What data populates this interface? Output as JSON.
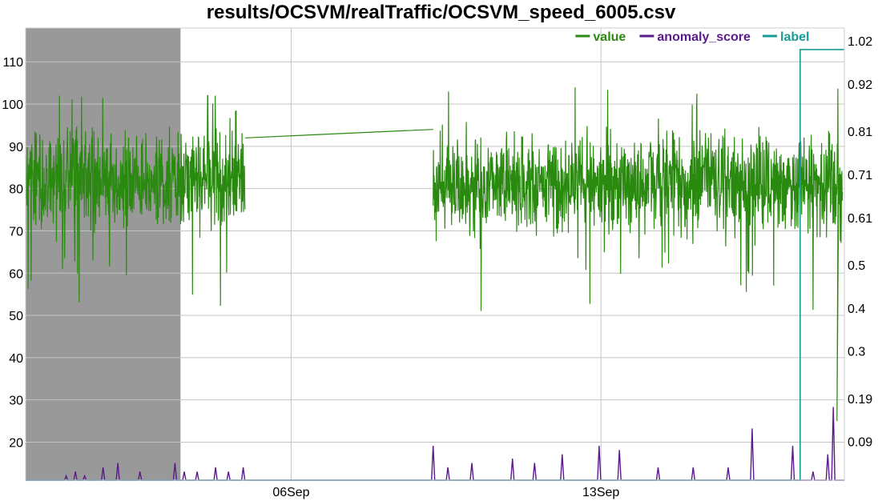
{
  "chart_data": {
    "type": "line",
    "title": "results/OCSVM/realTraffic/OCSVM_speed_6005.csv",
    "xlabel": "",
    "ylabel": "",
    "y_left": {
      "range": [
        11,
        118
      ],
      "ticks": [
        20,
        30,
        40,
        50,
        60,
        70,
        80,
        90,
        100,
        110
      ]
    },
    "y_right": {
      "range": [
        0,
        1.05
      ],
      "ticks": [
        "0.09",
        "0.19",
        "0.3",
        "0.4",
        "0.5",
        "0.61",
        "0.71",
        "0.81",
        "0.92",
        "1.02"
      ]
    },
    "x_range": [
      "2015-08-31 00:00",
      "2015-09-18 12:00"
    ],
    "x_ticks": [
      "06Sep",
      "13Sep"
    ],
    "grid": true,
    "legend_position": "top-right",
    "shaded_window": [
      "2015-08-31 00:00",
      "2015-09-03 12:00"
    ],
    "series": [
      {
        "name": "value",
        "axis": "left",
        "color": "#2a8a10",
        "segments": [
          {
            "start": "2015-08-31 00:00",
            "end": "2015-09-04 23:00",
            "mean": 82,
            "spread": 10,
            "min": 43,
            "max": 102
          },
          {
            "start": "2015-09-09 05:00",
            "end": "2015-09-18 11:00",
            "mean": 81,
            "spread": 10,
            "min": 25,
            "max": 109
          }
        ],
        "gap_connector": [
          [
            "2015-09-04 23:00",
            92
          ],
          [
            "2015-09-09 05:00",
            94
          ]
        ]
      },
      {
        "name": "anomaly_score",
        "axis": "right",
        "color": "#5a1a8c",
        "baseline": 0,
        "peaks": [
          [
            "2015-08-31 22:00",
            0.01
          ],
          [
            "2015-09-01 03:00",
            0.02
          ],
          [
            "2015-09-01 08:00",
            0.01
          ],
          [
            "2015-09-01 18:00",
            0.03
          ],
          [
            "2015-09-02 02:00",
            0.04
          ],
          [
            "2015-09-02 14:00",
            0.02
          ],
          [
            "2015-09-03 09:00",
            0.04
          ],
          [
            "2015-09-03 14:00",
            0.02
          ],
          [
            "2015-09-03 21:00",
            0.02
          ],
          [
            "2015-09-04 07:00",
            0.03
          ],
          [
            "2015-09-04 14:00",
            0.02
          ],
          [
            "2015-09-04 22:00",
            0.03
          ],
          [
            "2015-09-09 05:00",
            0.08
          ],
          [
            "2015-09-09 13:00",
            0.03
          ],
          [
            "2015-09-10 02:00",
            0.04
          ],
          [
            "2015-09-11 00:00",
            0.05
          ],
          [
            "2015-09-11 12:00",
            0.04
          ],
          [
            "2015-09-12 03:00",
            0.06
          ],
          [
            "2015-09-12 23:00",
            0.08
          ],
          [
            "2015-09-13 10:00",
            0.07
          ],
          [
            "2015-09-14 07:00",
            0.03
          ],
          [
            "2015-09-15 02:00",
            0.03
          ],
          [
            "2015-09-15 21:00",
            0.03
          ],
          [
            "2015-09-16 10:00",
            0.12
          ],
          [
            "2015-09-17 08:00",
            0.08
          ],
          [
            "2015-09-17 19:00",
            0.02
          ],
          [
            "2015-09-18 03:00",
            0.06
          ],
          [
            "2015-09-18 06:00",
            0.17
          ]
        ]
      },
      {
        "name": "label",
        "axis": "right",
        "color": "#1a9a94",
        "points": [
          [
            "2015-08-31 00:00",
            0
          ],
          [
            "2015-09-17 12:00",
            0
          ],
          [
            "2015-09-17 12:00",
            1
          ],
          [
            "2015-09-18 12:00",
            1
          ]
        ]
      }
    ]
  }
}
